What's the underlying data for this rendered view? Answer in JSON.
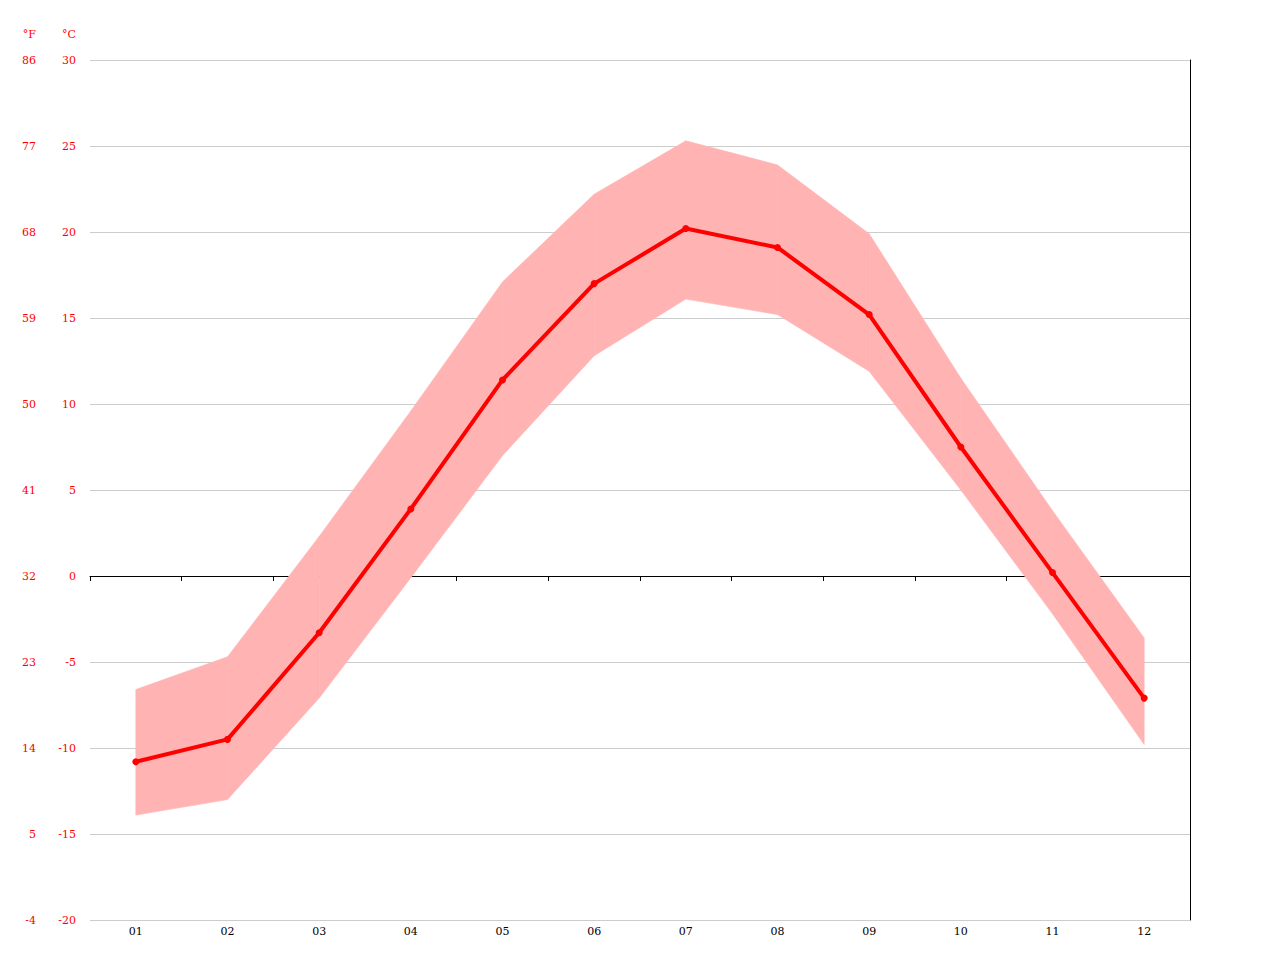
{
  "chart_data": {
    "type": "line",
    "categories": [
      "01",
      "02",
      "03",
      "04",
      "05",
      "06",
      "07",
      "08",
      "09",
      "10",
      "11",
      "12"
    ],
    "series": [
      {
        "color": "#ff0000",
        "marker": "circle",
        "values": [
          -10.8,
          -9.5,
          -3.3,
          3.9,
          11.4,
          17.0,
          20.2,
          19.1,
          15.2,
          7.5,
          0.2,
          -7.1
        ]
      }
    ],
    "band": {
      "color": "#ffb3b3",
      "lower": [
        -13.9,
        -13.0,
        -7.1,
        -0.1,
        7.0,
        12.8,
        16.1,
        15.2,
        11.9,
        5.0,
        -2.2,
        -9.8
      ],
      "upper": [
        -6.6,
        -4.7,
        2.3,
        9.6,
        17.1,
        22.2,
        25.3,
        23.9,
        19.9,
        11.5,
        3.8,
        -3.6
      ]
    },
    "ylabel": "°C",
    "ylim": [
      -20,
      30
    ],
    "yticks": [
      -20,
      -15,
      -10,
      -5,
      0,
      5,
      10,
      15,
      20,
      25,
      30
    ],
    "y2label": "°F",
    "y2lim": [
      -4,
      86
    ],
    "y2ticks": [
      -4,
      5,
      14,
      23,
      32,
      41,
      50,
      59,
      68,
      77,
      86
    ],
    "grid": true,
    "tick_labels": true
  }
}
